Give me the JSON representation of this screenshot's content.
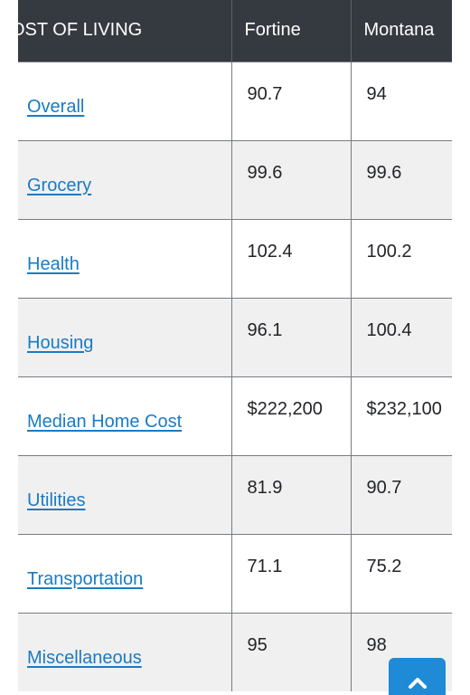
{
  "table": {
    "headers": [
      "OST OF LIVING",
      "Fortine",
      "Montana"
    ],
    "rows": [
      {
        "label": "Overall",
        "fortine": "90.7",
        "montana": "94"
      },
      {
        "label": "Grocery",
        "fortine": "99.6",
        "montana": "99.6"
      },
      {
        "label": "Health",
        "fortine": "102.4",
        "montana": "100.2"
      },
      {
        "label": "Housing",
        "fortine": "96.1",
        "montana": "100.4"
      },
      {
        "label": "Median Home Cost",
        "fortine": "$222,200",
        "montana": "$232,100"
      },
      {
        "label": "Utilities",
        "fortine": "81.9",
        "montana": "90.7"
      },
      {
        "label": "Transportation",
        "fortine": "71.1",
        "montana": "75.2"
      },
      {
        "label": "Miscellaneous",
        "fortine": "95",
        "montana": "98"
      }
    ]
  },
  "colors": {
    "header_bg": "#353a40",
    "link": "#1a7bc4",
    "alt_row": "#f0f0f0",
    "scroll_button": "#1f8ad6"
  },
  "icons": {
    "scroll_top": "chevron-up-icon"
  }
}
